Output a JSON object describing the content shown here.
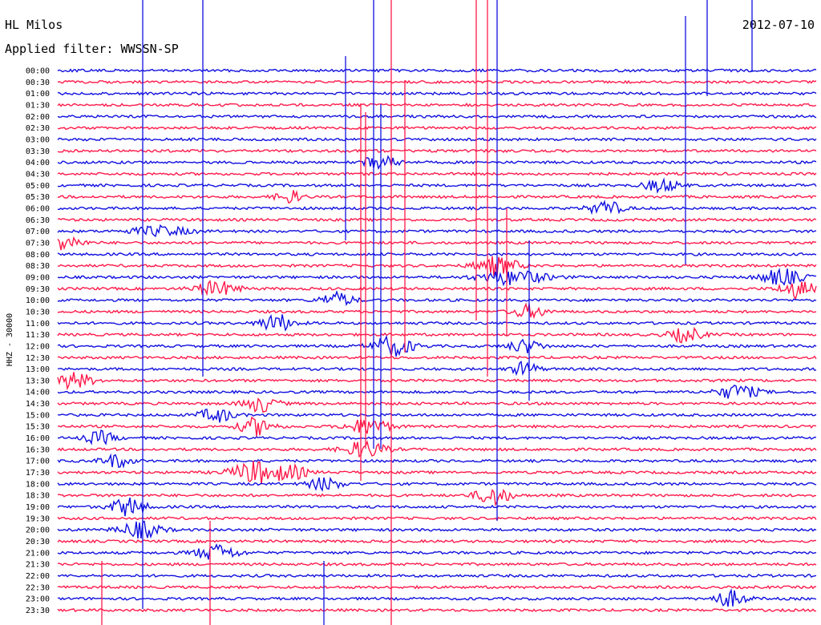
{
  "chart_data": {
    "type": "line",
    "station": "HL Milos",
    "date": "2012-07-10",
    "filter_text": "Applied filter: WWSSN-SP",
    "channel_label": "HHZ - 30000",
    "trace_colors": [
      "#1010e0",
      "#ff1a4a"
    ],
    "y_tick_labels": [
      "00:00",
      "00:30",
      "01:00",
      "01:30",
      "02:00",
      "02:30",
      "03:00",
      "03:30",
      "04:00",
      "04:30",
      "05:00",
      "05:30",
      "06:00",
      "06:30",
      "07:00",
      "07:30",
      "08:00",
      "08:30",
      "09:00",
      "09:30",
      "10:00",
      "10:30",
      "11:00",
      "11:30",
      "12:00",
      "12:30",
      "13:00",
      "13:30",
      "14:00",
      "14:30",
      "15:00",
      "15:30",
      "16:00",
      "16:30",
      "17:00",
      "17:30",
      "18:00",
      "18:30",
      "19:00",
      "19:30",
      "20:00",
      "20:30",
      "21:00",
      "21:30",
      "22:00",
      "22:30",
      "23:00",
      "23:30"
    ],
    "grid": false,
    "legend": "none"
  }
}
